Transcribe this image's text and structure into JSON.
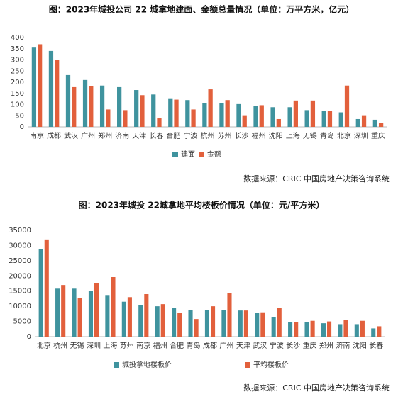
{
  "chart_data": [
    {
      "type": "bar",
      "title": "图：2023年城投公司 22 城拿地建面、金额总量情况（单位：万平方米，亿元）",
      "categories": [
        "南京",
        "成都",
        "武汉",
        "广州",
        "郑州",
        "济南",
        "天津",
        "长春",
        "合肥",
        "宁波",
        "杭州",
        "苏州",
        "长沙",
        "福州",
        "沈阳",
        "上海",
        "无锡",
        "青岛",
        "北京",
        "深圳",
        "重庆"
      ],
      "series": [
        {
          "name": "建面",
          "color": "#3f939e",
          "values": [
            355,
            340,
            232,
            210,
            185,
            178,
            165,
            145,
            128,
            120,
            105,
            105,
            102,
            95,
            88,
            88,
            75,
            73,
            65,
            35,
            32
          ]
        },
        {
          "name": "金额",
          "color": "#e2603c",
          "values": [
            370,
            300,
            178,
            182,
            78,
            75,
            142,
            38,
            122,
            78,
            168,
            120,
            52,
            97,
            35,
            118,
            118,
            70,
            185,
            52,
            18
          ]
        }
      ],
      "ylim": [
        0,
        400
      ],
      "yticks": [
        0,
        50,
        100,
        150,
        200,
        250,
        300,
        350,
        400
      ],
      "grid": false,
      "source": "数据来源：CRIC 中国房地产决策咨询系统"
    },
    {
      "type": "bar",
      "title": "图：2023年城投 22城拿地平均楼板价情况（单位：元/平方米）",
      "categories": [
        "北京",
        "杭州",
        "无锡",
        "深圳",
        "上海",
        "苏州",
        "南京",
        "福州",
        "合肥",
        "青岛",
        "成都",
        "广州",
        "天津",
        "武汉",
        "宁波",
        "长沙",
        "重庆",
        "郑州",
        "济南",
        "沈阳",
        "长春"
      ],
      "series": [
        {
          "name": "城投拿地楼板价",
          "color": "#3f939e",
          "values": [
            28800,
            15800,
            15800,
            15000,
            13700,
            11500,
            10500,
            10000,
            9500,
            8800,
            8800,
            8800,
            8600,
            7700,
            6400,
            4800,
            4800,
            4400,
            4100,
            4100,
            2700
          ]
        },
        {
          "name": "平均楼板价",
          "color": "#e2603c",
          "values": [
            32000,
            17000,
            12700,
            17700,
            19600,
            13000,
            14000,
            10700,
            7700,
            5800,
            10000,
            14400,
            8600,
            8000,
            9500,
            4800,
            5200,
            5000,
            5600,
            5200,
            3400
          ]
        }
      ],
      "ylim": [
        0,
        35000
      ],
      "yticks": [
        0,
        5000,
        10000,
        15000,
        20000,
        25000,
        30000,
        35000
      ],
      "grid": false,
      "source": "数据来源：CRIC 中国房地产决策咨询系统"
    }
  ]
}
